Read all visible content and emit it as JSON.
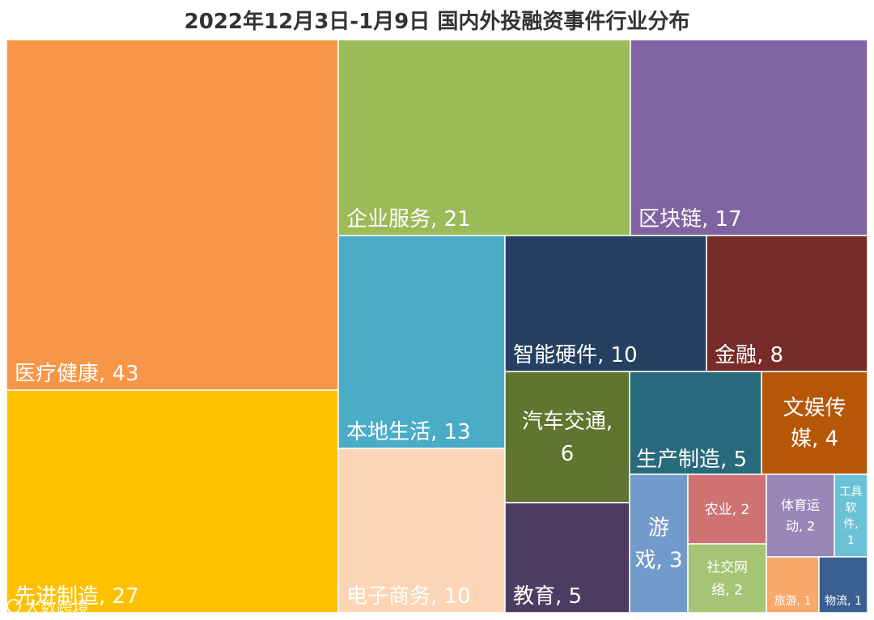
{
  "chart_data": {
    "type": "treemap",
    "title": "2022年12月3日-1月9日 国内外投融资事件行业分布",
    "tiles": [
      {
        "name": "医疗健康",
        "value": 43,
        "color": "#F79646"
      },
      {
        "name": "先进制造",
        "value": 27,
        "color": "#FFC000"
      },
      {
        "name": "企业服务",
        "value": 21,
        "color": "#9BBB59"
      },
      {
        "name": "区块链",
        "value": 17,
        "color": "#8064A2"
      },
      {
        "name": "本地生活",
        "value": 13,
        "color": "#4BACC6"
      },
      {
        "name": "电子商务",
        "value": 10,
        "color": "#FBD5B5"
      },
      {
        "name": "智能硬件",
        "value": 10,
        "color": "#254061"
      },
      {
        "name": "金融",
        "value": 8,
        "color": "#772C2A"
      },
      {
        "name": "汽车交通",
        "value": 6,
        "color": "#5F7530"
      },
      {
        "name": "教育",
        "value": 5,
        "color": "#4D3B62"
      },
      {
        "name": "生产制造",
        "value": 5,
        "color": "#276A7C"
      },
      {
        "name": "文娱传媒",
        "value": 4,
        "color": "#B65708"
      },
      {
        "name": "游戏",
        "value": 3,
        "color": "#729ACA"
      },
      {
        "name": "农业",
        "value": 2,
        "color": "#CE7372"
      },
      {
        "name": "社交网络",
        "value": 2,
        "color": "#A5C474"
      },
      {
        "name": "体育运动",
        "value": 2,
        "color": "#9887B6"
      },
      {
        "name": "工具软件",
        "value": 1,
        "color": "#6BC1D6"
      },
      {
        "name": "旅游",
        "value": 1,
        "color": "#F8A86A"
      },
      {
        "name": "物流",
        "value": 1,
        "color": "#3A5F91"
      }
    ]
  },
  "watermark": {
    "text": "大数跨境"
  }
}
